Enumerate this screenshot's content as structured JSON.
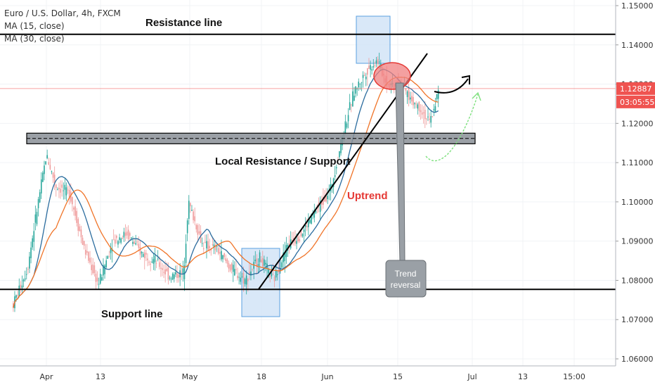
{
  "legend": {
    "symbol_line": "Euro / U.S. Dollar, 4h, FXCM",
    "ma15_line": "MA (15, close)",
    "ma30_line": "MA (30, close)"
  },
  "colors": {
    "up": "#26a69a",
    "down": "#ef9a9a",
    "ma15": "#2b6c9e",
    "ma30": "#f07428",
    "uptrend": "#e53935",
    "priceBadge": "#ef5350",
    "projection": "#7ee07e"
  },
  "chart_data": {
    "type": "candlestick",
    "symbol": "Euro / U.S. Dollar",
    "interval": "4h",
    "source": "FXCM",
    "indicators": [
      "MA (15, close)",
      "MA (30, close)"
    ],
    "ylim": [
      1.06,
      1.15
    ],
    "y_ticks": [
      "1.06000",
      "1.07000",
      "1.08000",
      "1.09000",
      "1.10000",
      "1.11000",
      "1.12000",
      "1.13000",
      "1.14000",
      "1.15000"
    ],
    "x_ticks": [
      "Apr",
      "13",
      "May",
      "18",
      "Jun",
      "15",
      "Jul",
      "13",
      "15:00"
    ],
    "current_price": "1.12887",
    "countdown": "03:05:55",
    "price_path": [
      [
        "Mar 25",
        1.074
      ],
      [
        "Mar 28",
        1.083
      ],
      [
        "Mar 30",
        1.098
      ],
      [
        "Apr 1",
        1.112
      ],
      [
        "Apr 3",
        1.104
      ],
      [
        "Apr 6",
        1.102
      ],
      [
        "Apr 9",
        1.088
      ],
      [
        "Apr 12",
        1.079
      ],
      [
        "Apr 15",
        1.09
      ],
      [
        "Apr 18",
        1.092
      ],
      [
        "Apr 21",
        1.087
      ],
      [
        "Apr 24",
        1.085
      ],
      [
        "Apr 27",
        1.081
      ],
      [
        "Apr 30",
        1.082
      ],
      [
        "May 1",
        1.1
      ],
      [
        "May 4",
        1.089
      ],
      [
        "May 7",
        1.088
      ],
      [
        "May 10",
        1.083
      ],
      [
        "May 13",
        1.08
      ],
      [
        "May 16",
        1.086
      ],
      [
        "May 19",
        1.08
      ],
      [
        "May 22",
        1.089
      ],
      [
        "May 25",
        1.092
      ],
      [
        "May 28",
        1.098
      ],
      [
        "May 31",
        1.103
      ],
      [
        "Jun 3",
        1.119
      ],
      [
        "Jun 5",
        1.128
      ],
      [
        "Jun 8",
        1.134
      ],
      [
        "Jun 10",
        1.136
      ],
      [
        "Jun 12",
        1.13
      ],
      [
        "Jun 15",
        1.13
      ],
      [
        "Jun 17",
        1.126
      ],
      [
        "Jun 19",
        1.124
      ],
      [
        "Jun 21",
        1.12
      ],
      [
        "Jun 23",
        1.1289
      ]
    ],
    "annotations": [
      {
        "text": "Resistance line",
        "price": 1.1427
      },
      {
        "text": "Support line",
        "price": 1.0777
      },
      {
        "text": "Local Resistance / Support",
        "price_range": [
          1.115,
          1.1175
        ]
      },
      {
        "text": "Uptrend"
      },
      {
        "text": "Trend reversal"
      }
    ]
  },
  "labels": {
    "resistance": "Resistance line",
    "support": "Support line",
    "local": "Local Resistance / Support",
    "uptrend": "Uptrend",
    "reversal_line1": "Trend",
    "reversal_line2": "reversal",
    "price": "1.12887",
    "countdown": "03:05:55"
  }
}
